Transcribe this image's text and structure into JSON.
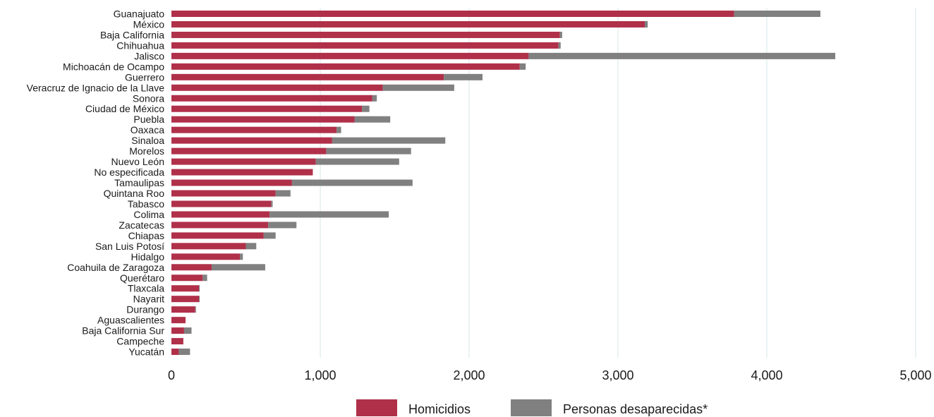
{
  "chart_data": {
    "type": "bar",
    "orientation": "horizontal",
    "stacked": true,
    "title": "",
    "xlabel": "",
    "ylabel": "",
    "xlim": [
      0,
      5000
    ],
    "xticks": [
      0,
      1000,
      2000,
      3000,
      4000,
      5000
    ],
    "xtick_labels": [
      "0",
      "1,000",
      "2,000",
      "3,000",
      "4,000",
      "5,000"
    ],
    "grid": "vertical",
    "legend_position": "bottom-center",
    "categories": [
      "Guanajuato",
      "México",
      "Baja California",
      "Chihuahua",
      "Jalisco",
      "Michoacán de Ocampo",
      "Guerrero",
      "Veracruz de Ignacio de la Llave",
      "Sonora",
      "Ciudad de México",
      "Puebla",
      "Oaxaca",
      "Sinaloa",
      "Morelos",
      "Nuevo León",
      "No especificada",
      "Tamaulipas",
      "Quintana Roo",
      "Tabasco",
      "Colima",
      "Zacatecas",
      "Chiapas",
      "San Luis Potosí",
      "Hidalgo",
      "Coahuila de Zaragoza",
      "Querétaro",
      "Tlaxcala",
      "Nayarit",
      "Durango",
      "Aguascalientes",
      "Baja California Sur",
      "Campeche",
      "Yucatán"
    ],
    "series": [
      {
        "name": "Homicidios",
        "color": "#b0304a",
        "values": [
          3780,
          3180,
          2610,
          2600,
          2400,
          2340,
          1830,
          1420,
          1350,
          1280,
          1230,
          1110,
          1080,
          1040,
          970,
          950,
          810,
          700,
          670,
          660,
          650,
          620,
          500,
          460,
          270,
          210,
          185,
          185,
          160,
          95,
          85,
          80,
          50
        ]
      },
      {
        "name": "Personas desaparecidas*",
        "color": "#808080",
        "values": [
          580,
          20,
          15,
          15,
          2060,
          40,
          260,
          480,
          30,
          50,
          240,
          30,
          760,
          570,
          560,
          0,
          810,
          100,
          10,
          800,
          190,
          80,
          70,
          20,
          360,
          30,
          5,
          5,
          5,
          0,
          50,
          0,
          75
        ]
      }
    ]
  }
}
